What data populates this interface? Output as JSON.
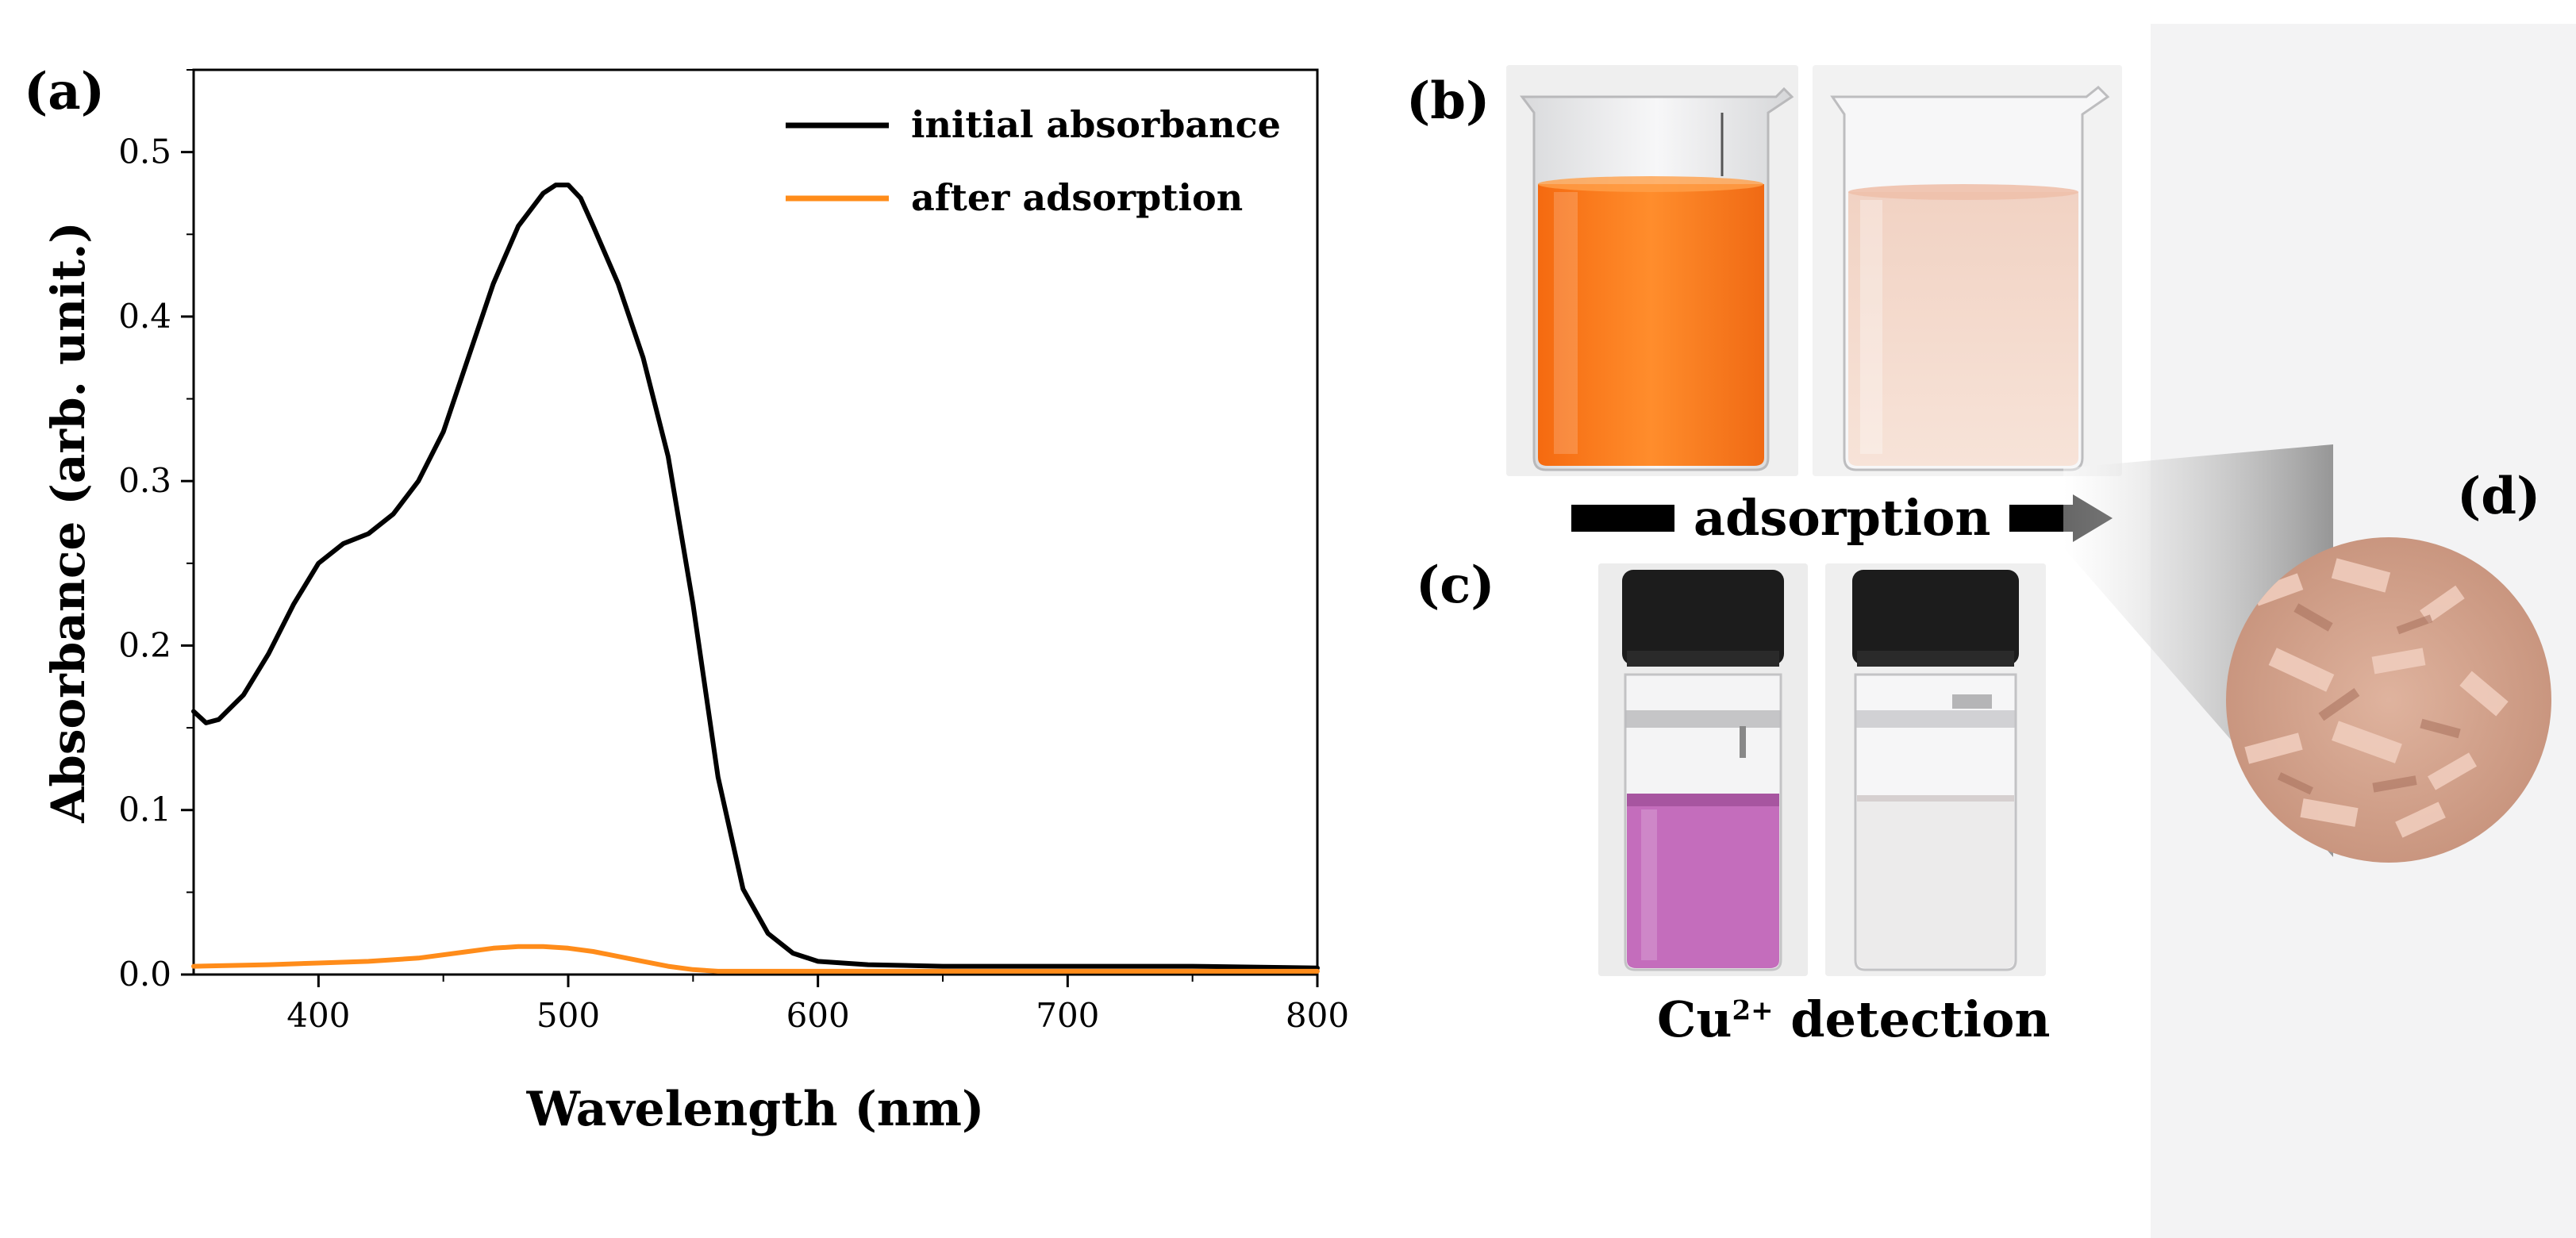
{
  "panels": {
    "a": "(a)",
    "b": "(b)",
    "c": "(c)",
    "d": "(d)"
  },
  "captions": {
    "adsorption": "adsorption",
    "cu_detection": "detection",
    "cu_ion_base": "Cu",
    "cu_ion_sup": "2+"
  },
  "colors": {
    "initial": "#000000",
    "after": "#ff8c1a",
    "orange_solution": "#ff7a1a",
    "pale_solution": "#f4d6c8",
    "purple_solution": "#c86fc0",
    "clear_solution": "#eceaea",
    "powder": "#d8a891"
  },
  "chart_data": {
    "type": "line",
    "title": "",
    "xlabel": "Wavelength (nm)",
    "ylabel": "Absorbance (arb. unit.)",
    "xlim": [
      350,
      800
    ],
    "ylim": [
      0,
      0.55
    ],
    "xticks": [
      400,
      500,
      600,
      700,
      800
    ],
    "xtick_labels": [
      "400",
      "500",
      "600",
      "700",
      "800"
    ],
    "yticks": [
      0.0,
      0.1,
      0.2,
      0.3,
      0.4,
      0.5
    ],
    "ytick_labels": [
      "0.0",
      "0.1",
      "0.2",
      "0.3",
      "0.4",
      "0.5"
    ],
    "legend": "top-right",
    "series": [
      {
        "name": "initial absorbance",
        "color": "#000000",
        "x": [
          350,
          355,
          360,
          370,
          380,
          390,
          400,
          410,
          420,
          430,
          440,
          450,
          460,
          470,
          480,
          490,
          495,
          500,
          505,
          510,
          520,
          530,
          540,
          550,
          560,
          570,
          580,
          590,
          600,
          620,
          650,
          700,
          750,
          800
        ],
        "y": [
          0.16,
          0.153,
          0.155,
          0.17,
          0.195,
          0.225,
          0.25,
          0.262,
          0.268,
          0.28,
          0.3,
          0.33,
          0.375,
          0.42,
          0.455,
          0.475,
          0.48,
          0.48,
          0.472,
          0.455,
          0.42,
          0.375,
          0.315,
          0.225,
          0.12,
          0.052,
          0.025,
          0.013,
          0.008,
          0.006,
          0.005,
          0.005,
          0.005,
          0.004
        ]
      },
      {
        "name": "after adsorption",
        "color": "#ff8c1a",
        "x": [
          350,
          380,
          400,
          420,
          440,
          460,
          470,
          480,
          490,
          500,
          510,
          520,
          530,
          540,
          550,
          560,
          600,
          700,
          800
        ],
        "y": [
          0.005,
          0.006,
          0.007,
          0.008,
          0.01,
          0.014,
          0.016,
          0.017,
          0.017,
          0.016,
          0.014,
          0.011,
          0.008,
          0.005,
          0.003,
          0.002,
          0.002,
          0.002,
          0.002
        ]
      }
    ]
  }
}
